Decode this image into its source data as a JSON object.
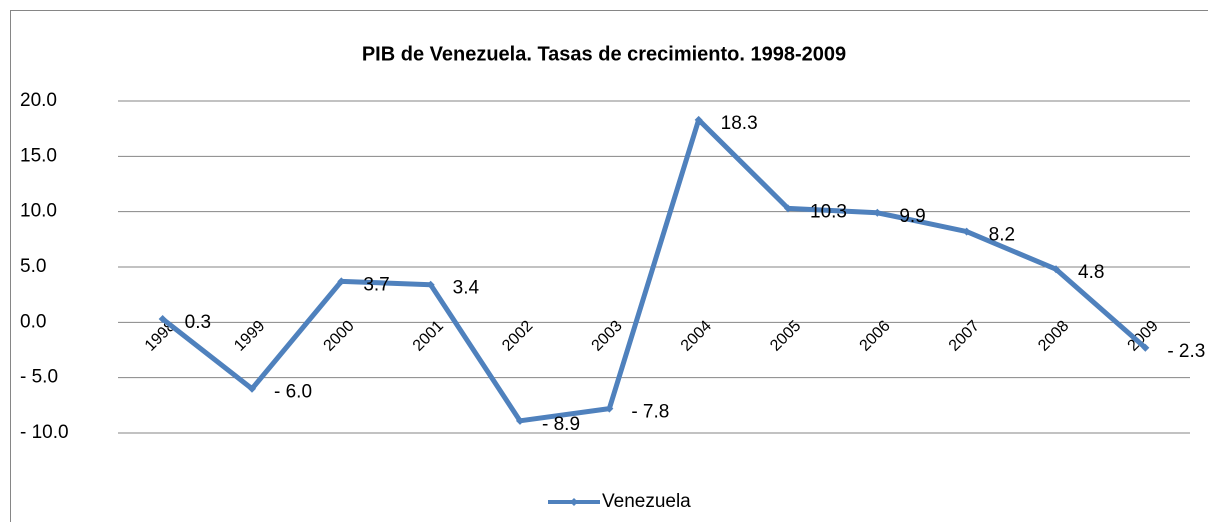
{
  "chart_data": {
    "type": "line",
    "title": "PIB  de Venezuela. Tasas de crecimiento. 1998-2009",
    "categories": [
      "1998",
      "1999",
      "2000",
      "2001",
      "2002",
      "2003",
      "2004",
      "2005",
      "2006",
      "2007",
      "2008",
      "2009"
    ],
    "series": [
      {
        "name": "Venezuela",
        "color": "#4f81bd",
        "values": [
          0.3,
          -6.0,
          3.7,
          3.4,
          -8.9,
          -7.8,
          18.3,
          10.3,
          9.9,
          8.2,
          4.8,
          -2.3
        ],
        "value_labels": [
          "0.3",
          "-  6.0",
          "3.7",
          "3.4",
          "-  8.9",
          "-  7.8",
          "18.3",
          "10.3",
          "9.9",
          "8.2",
          "4.8",
          "-  2.3"
        ]
      }
    ],
    "ylim": [
      -10,
      20
    ],
    "yticks": [
      {
        "value": -10,
        "label": "-  10.0"
      },
      {
        "value": -5,
        "label": "-  5.0"
      },
      {
        "value": 0,
        "label": "0.0"
      },
      {
        "value": 5,
        "label": "5.0"
      },
      {
        "value": 10,
        "label": "10.0"
      },
      {
        "value": 15,
        "label": "15.0"
      },
      {
        "value": 20,
        "label": "20.0"
      }
    ],
    "grid": true,
    "legend": "bottom"
  }
}
